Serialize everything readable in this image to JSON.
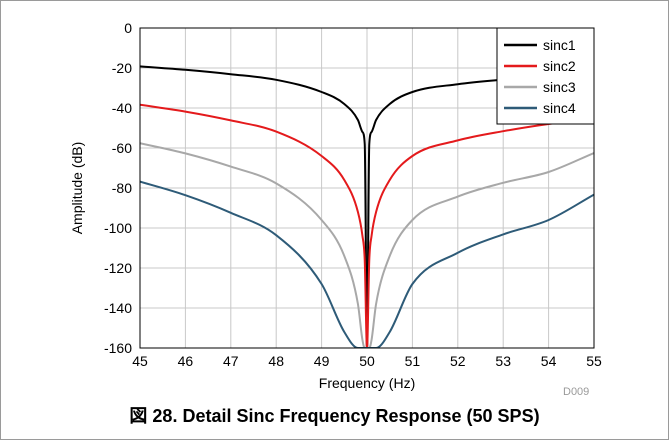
{
  "caption": "図 28. Detail Sinc Frequency Response (50 SPS)",
  "figure_code": "D009",
  "chart_data": {
    "type": "line",
    "title": "",
    "xlabel": "Frequency (Hz)",
    "ylabel": "Amplitude (dB)",
    "xlim": [
      45,
      55
    ],
    "ylim": [
      -160,
      0
    ],
    "xticks": [
      "45",
      "46",
      "47",
      "48",
      "49",
      "50",
      "51",
      "52",
      "53",
      "54",
      "55"
    ],
    "yticks": [
      "0",
      "-20",
      "-40",
      "-60",
      "-80",
      "-100",
      "-120",
      "-140",
      "-160"
    ],
    "grid": true,
    "legend_position": "top-right",
    "x": [
      45,
      46,
      47,
      48,
      49,
      49.5,
      49.8,
      49.9,
      49.95,
      50,
      50.05,
      50.1,
      50.2,
      50.5,
      51,
      52,
      53,
      54,
      55
    ],
    "series": [
      {
        "name": "sinc1",
        "color": "#000000",
        "values": [
          -19.2,
          -20.9,
          -23.1,
          -25.9,
          -32.0,
          -38.0,
          -46.0,
          -52.0,
          -58.0,
          -160,
          -58.0,
          -52.0,
          -46.0,
          -38.0,
          -32.0,
          -28.1,
          -25.8,
          -24.0,
          -22.7
        ]
      },
      {
        "name": "sinc2",
        "color": "#e41a1c",
        "values": [
          -38.4,
          -41.8,
          -46.2,
          -51.8,
          -64.0,
          -76.0,
          -92.0,
          -104.0,
          -116.0,
          -160,
          -116.0,
          -104.0,
          -92.0,
          -76.0,
          -64.0,
          -56.2,
          -51.6,
          -48.0,
          -45.4
        ]
      },
      {
        "name": "sinc3",
        "color": "#a8a8a8",
        "values": [
          -57.6,
          -62.7,
          -69.3,
          -77.7,
          -96.0,
          -114.0,
          -138.0,
          -156.0,
          -160,
          -160,
          -160,
          -156.0,
          -138.0,
          -114.0,
          -96.0,
          -84.3,
          -77.4,
          -72.0,
          -62.5
        ]
      },
      {
        "name": "sinc4",
        "color": "#2e5b78",
        "values": [
          -76.8,
          -83.6,
          -92.4,
          -103.6,
          -128.0,
          -152.0,
          -160,
          -160,
          -160,
          -160,
          -160,
          -160,
          -160,
          -152.0,
          -128.0,
          -112.4,
          -103.2,
          -96.0,
          -83.3
        ]
      }
    ]
  }
}
